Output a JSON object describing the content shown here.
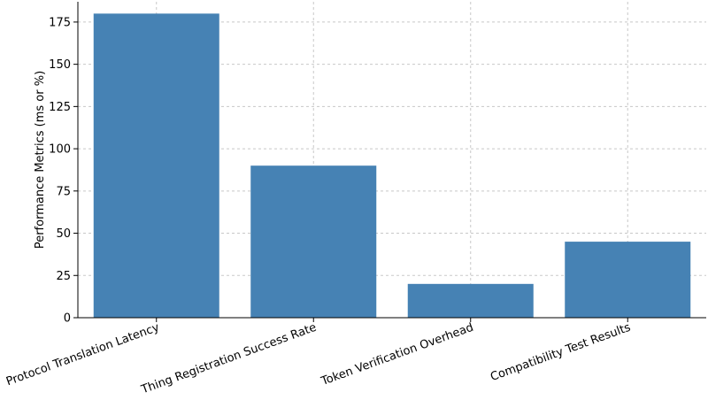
{
  "chart_data": {
    "type": "bar",
    "title": "",
    "xlabel": "",
    "ylabel": "Performance Metrics (ms or %)",
    "categories": [
      "Protocol Translation Latency",
      "Thing Registration Success Rate",
      "Token Verification Overhead",
      "Compatibility Test Results"
    ],
    "values": [
      180,
      90,
      20,
      45
    ],
    "ylim": [
      0,
      187
    ],
    "yticks": [
      0,
      25,
      50,
      75,
      100,
      125,
      150,
      175
    ],
    "grid": true,
    "bar_color": "#4682b4"
  }
}
